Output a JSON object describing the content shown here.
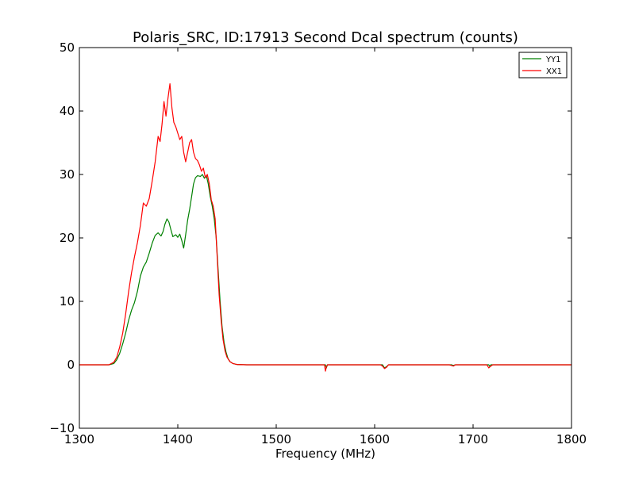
{
  "chart_data": {
    "type": "line",
    "title": "Polaris_SRC, ID:17913 Second Dcal spectrum (counts)",
    "xlabel": "Frequency (MHz)",
    "ylabel": "",
    "xlim": [
      1300,
      1800
    ],
    "ylim": [
      -10,
      50
    ],
    "x_ticks": [
      1300,
      1400,
      1500,
      1600,
      1700,
      1800
    ],
    "y_ticks": [
      -10,
      0,
      10,
      20,
      30,
      40,
      50
    ],
    "grid": false,
    "legend": {
      "position": "top-right",
      "entries": [
        "YY1",
        "XX1"
      ]
    },
    "series": [
      {
        "name": "YY1",
        "color": "#008000",
        "points": [
          [
            1300,
            0
          ],
          [
            1330,
            0
          ],
          [
            1335,
            0.2
          ],
          [
            1338,
            0.8
          ],
          [
            1341,
            1.8
          ],
          [
            1344,
            3.3
          ],
          [
            1347,
            5.0
          ],
          [
            1350,
            7.0
          ],
          [
            1353,
            8.6
          ],
          [
            1356,
            9.8
          ],
          [
            1359,
            11.6
          ],
          [
            1362,
            14.0
          ],
          [
            1365,
            15.4
          ],
          [
            1368,
            16.2
          ],
          [
            1371,
            17.6
          ],
          [
            1374,
            19.2
          ],
          [
            1377,
            20.4
          ],
          [
            1380,
            20.8
          ],
          [
            1383,
            20.3
          ],
          [
            1385,
            21.0
          ],
          [
            1387,
            22.2
          ],
          [
            1389,
            23.0
          ],
          [
            1391,
            22.5
          ],
          [
            1393,
            21.3
          ],
          [
            1395,
            20.2
          ],
          [
            1398,
            20.5
          ],
          [
            1400,
            20.1
          ],
          [
            1402,
            20.6
          ],
          [
            1404,
            19.6
          ],
          [
            1406,
            18.4
          ],
          [
            1408,
            20.5
          ],
          [
            1410,
            22.8
          ],
          [
            1412,
            24.5
          ],
          [
            1414,
            26.5
          ],
          [
            1416,
            28.5
          ],
          [
            1418,
            29.5
          ],
          [
            1420,
            29.8
          ],
          [
            1423,
            29.7
          ],
          [
            1425,
            30.0
          ],
          [
            1427,
            29.4
          ],
          [
            1429,
            29.8
          ],
          [
            1431,
            28.5
          ],
          [
            1433,
            26.5
          ],
          [
            1435,
            25.0
          ],
          [
            1437,
            23.0
          ],
          [
            1439,
            20.0
          ],
          [
            1441,
            15.0
          ],
          [
            1443,
            10.0
          ],
          [
            1445,
            6.0
          ],
          [
            1447,
            3.5
          ],
          [
            1449,
            2.0
          ],
          [
            1451,
            1.0
          ],
          [
            1453,
            0.5
          ],
          [
            1456,
            0.2
          ],
          [
            1460,
            0.05
          ],
          [
            1470,
            0
          ],
          [
            1550,
            0
          ],
          [
            1551,
            -0.5
          ],
          [
            1552,
            0
          ],
          [
            1608,
            0
          ],
          [
            1610,
            -0.5
          ],
          [
            1612,
            -0.3
          ],
          [
            1614,
            0
          ],
          [
            1678,
            0
          ],
          [
            1680,
            -0.1
          ],
          [
            1682,
            0
          ],
          [
            1716,
            0
          ],
          [
            1717,
            -0.3
          ],
          [
            1718,
            0
          ],
          [
            1800,
            0
          ]
        ]
      },
      {
        "name": "XX1",
        "color": "#ff0000",
        "points": [
          [
            1300,
            0
          ],
          [
            1330,
            0
          ],
          [
            1335,
            0.4
          ],
          [
            1338,
            1.2
          ],
          [
            1341,
            2.8
          ],
          [
            1344,
            5.0
          ],
          [
            1347,
            8.0
          ],
          [
            1350,
            11.5
          ],
          [
            1353,
            14.5
          ],
          [
            1356,
            17.0
          ],
          [
            1359,
            19.3
          ],
          [
            1362,
            22.0
          ],
          [
            1365,
            25.5
          ],
          [
            1368,
            25.0
          ],
          [
            1371,
            26.2
          ],
          [
            1374,
            29.0
          ],
          [
            1377,
            32.0
          ],
          [
            1380,
            36.0
          ],
          [
            1382,
            35.2
          ],
          [
            1384,
            38.0
          ],
          [
            1386,
            41.5
          ],
          [
            1388,
            39.2
          ],
          [
            1390,
            42.0
          ],
          [
            1392,
            44.3
          ],
          [
            1394,
            40.5
          ],
          [
            1396,
            38.2
          ],
          [
            1398,
            37.5
          ],
          [
            1400,
            36.5
          ],
          [
            1402,
            35.5
          ],
          [
            1404,
            36.0
          ],
          [
            1406,
            33.5
          ],
          [
            1408,
            32.0
          ],
          [
            1410,
            33.5
          ],
          [
            1412,
            35.0
          ],
          [
            1414,
            35.5
          ],
          [
            1416,
            33.5
          ],
          [
            1418,
            32.5
          ],
          [
            1420,
            32.2
          ],
          [
            1422,
            31.5
          ],
          [
            1424,
            30.5
          ],
          [
            1426,
            31.0
          ],
          [
            1428,
            29.5
          ],
          [
            1430,
            30.0
          ],
          [
            1432,
            28.5
          ],
          [
            1434,
            26.0
          ],
          [
            1436,
            25.0
          ],
          [
            1438,
            23.0
          ],
          [
            1440,
            17.0
          ],
          [
            1442,
            11.0
          ],
          [
            1444,
            7.0
          ],
          [
            1446,
            4.0
          ],
          [
            1448,
            2.2
          ],
          [
            1450,
            1.2
          ],
          [
            1453,
            0.5
          ],
          [
            1456,
            0.2
          ],
          [
            1460,
            0.05
          ],
          [
            1470,
            0
          ],
          [
            1549,
            0
          ],
          [
            1550,
            -1.0
          ],
          [
            1551,
            -0.3
          ],
          [
            1552,
            0
          ],
          [
            1606,
            0
          ],
          [
            1608,
            -0.2
          ],
          [
            1610,
            -0.6
          ],
          [
            1612,
            -0.4
          ],
          [
            1614,
            0
          ],
          [
            1676,
            0
          ],
          [
            1678,
            -0.1
          ],
          [
            1680,
            -0.2
          ],
          [
            1682,
            0
          ],
          [
            1714,
            0
          ],
          [
            1716,
            -0.5
          ],
          [
            1718,
            -0.2
          ],
          [
            1720,
            0
          ],
          [
            1800,
            0
          ]
        ]
      }
    ]
  }
}
